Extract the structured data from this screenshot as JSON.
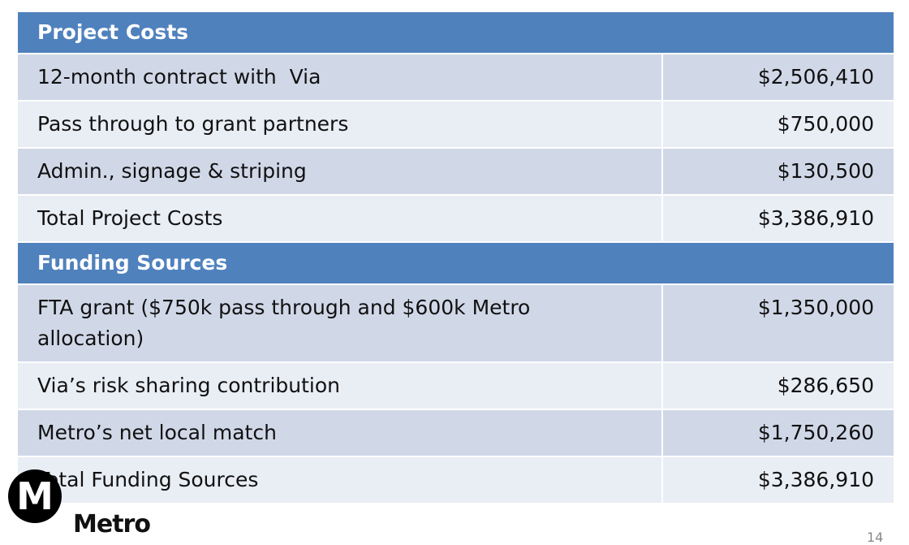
{
  "table": {
    "sections": [
      {
        "title": "Project Costs",
        "rows": [
          [
            "12-month contract with  Via",
            "$2,506,410"
          ],
          [
            "Pass through to grant partners",
            "$750,000"
          ],
          [
            "Admin., signage & striping",
            "$130,500"
          ],
          [
            "Total Project Costs",
            "$3,386,910"
          ]
        ]
      },
      {
        "title": "Funding Sources",
        "rows": [
          [
            "FTA grant ($750k pass through and $600k Metro allocation)",
            "$1,350,000"
          ],
          [
            "Via’s risk sharing contribution",
            "$286,650"
          ],
          [
            "Metro’s net local match",
            "$1,750,260"
          ],
          [
            "Total Funding Sources",
            "$3,386,910"
          ]
        ]
      }
    ]
  },
  "logo": {
    "mark": "M",
    "name": "Metro"
  },
  "page_number": "14"
}
